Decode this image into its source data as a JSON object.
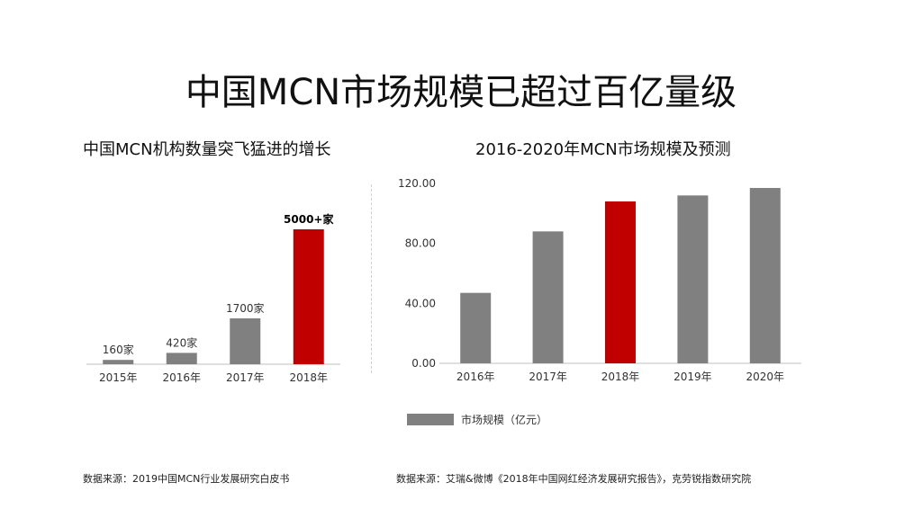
{
  "title": "中国MCN市场规模已超过百亿量级",
  "left": {
    "subtitle": "中国MCN机构数量突飞猛进的增长",
    "source": "数据来源：2019中国MCN行业发展研究白皮书"
  },
  "right": {
    "subtitle": "2016-2020年MCN市场规模及预测",
    "source": "数据来源：艾瑞&微博《2018年中国网红经济发展研究报告》，克劳锐指数研究院",
    "legend": "市场规模（亿元）"
  },
  "colors": {
    "bar": "#808080",
    "highlight": "#c00000",
    "axis": "#bfbfbf"
  },
  "chart_data": [
    {
      "type": "bar",
      "title": "中国MCN机构数量突飞猛进的增长",
      "categories": [
        "2015年",
        "2016年",
        "2017年",
        "2018年"
      ],
      "values": [
        160,
        420,
        1700,
        5000
      ],
      "data_labels": [
        "160家",
        "420家",
        "1700家",
        "5000+家"
      ],
      "highlight_index": 3,
      "ylim": [
        0,
        5500
      ],
      "grid": false,
      "yaxis_visible": false
    },
    {
      "type": "bar",
      "title": "2016-2020年MCN市场规模及预测",
      "categories": [
        "2016年",
        "2017年",
        "2018年",
        "2019年",
        "2020年"
      ],
      "series": [
        {
          "name": "市场规模（亿元）",
          "values": [
            47,
            88,
            108,
            112,
            117
          ]
        }
      ],
      "yticks": [
        "0.00",
        "40.00",
        "80.00",
        "120.00"
      ],
      "ytick_values": [
        0,
        40,
        80,
        120
      ],
      "ylim": [
        0,
        120
      ],
      "highlight_index": 2,
      "grid": false,
      "legend_position": "bottom-left"
    }
  ]
}
